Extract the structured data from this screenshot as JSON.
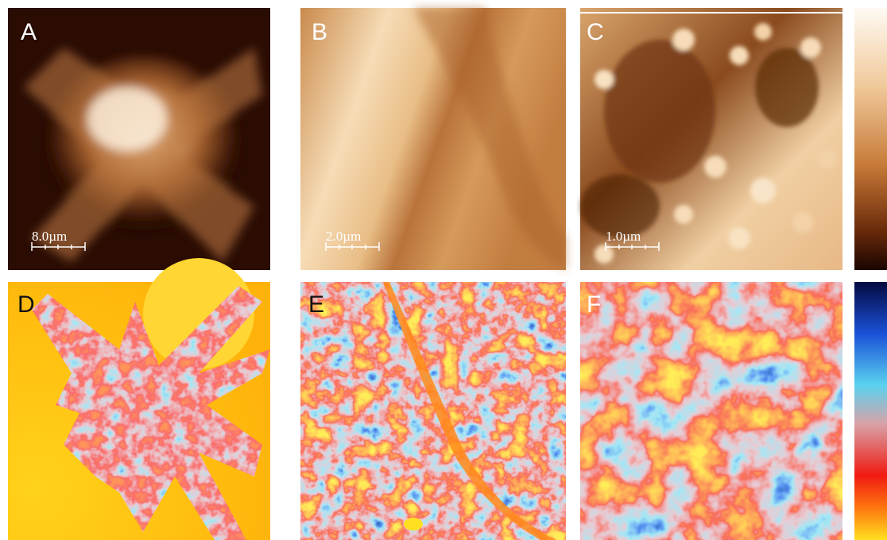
{
  "panels": [
    {
      "label": "A",
      "scale_bar": "8.0µm"
    },
    {
      "label": "B",
      "scale_bar": "2.0µm"
    },
    {
      "label": "C",
      "scale_bar": "1.0µm"
    },
    {
      "label": "D"
    },
    {
      "label": "E"
    },
    {
      "label": "F"
    }
  ]
}
